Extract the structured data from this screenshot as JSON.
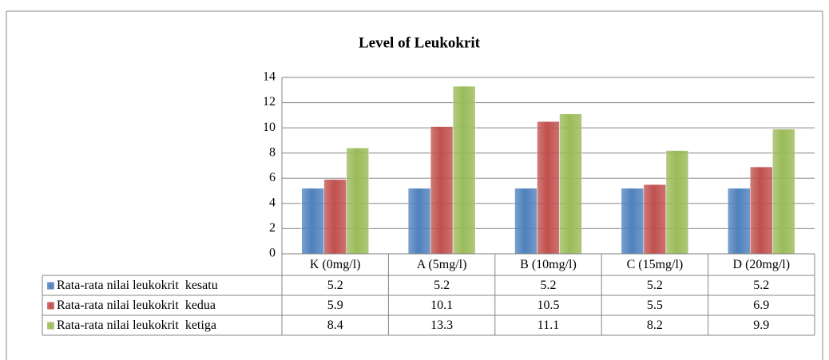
{
  "chart_data": {
    "type": "bar",
    "title": "Level of Leukokrit",
    "categories": [
      "K (0mg/l)",
      "A (5mg/l)",
      "B (10mg/l)",
      "C (15mg/l)",
      "D (20mg/l)"
    ],
    "series": [
      {
        "name": "Rata-rata nilai leukokrit  kesatu",
        "color": "#4f81bd",
        "values": [
          5.2,
          5.2,
          5.2,
          5.2,
          5.2
        ]
      },
      {
        "name": "Rata-rata nilai leukokrit  kedua",
        "color": "#c0504d",
        "values": [
          5.9,
          10.1,
          10.5,
          5.5,
          6.9
        ]
      },
      {
        "name": "Rata-rata nilai leukokrit  ketiga",
        "color": "#9bbb59",
        "values": [
          8.4,
          13.3,
          11.1,
          8.2,
          9.9
        ]
      }
    ],
    "ylim": [
      0,
      14
    ],
    "yticks": [
      0,
      2,
      4,
      6,
      8,
      10,
      12,
      14
    ],
    "grid": true
  }
}
